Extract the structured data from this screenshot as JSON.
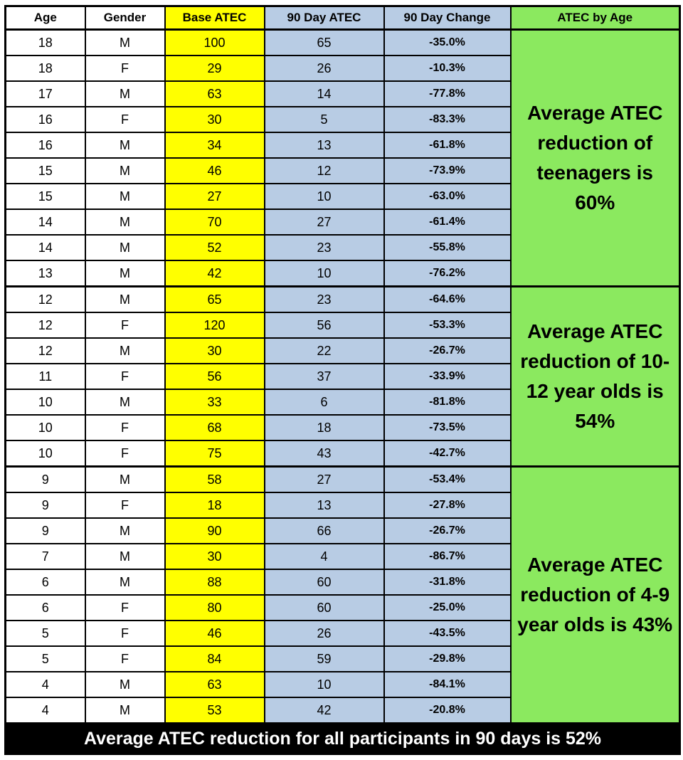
{
  "colors": {
    "base_atec_fill": "#FFFF00",
    "day90_fill": "#B8CCE4",
    "group_fill": "#8BE95F",
    "footer_bg": "#000000",
    "footer_text": "#FFFFFF",
    "border": "#000000"
  },
  "chart_data": {
    "type": "table",
    "columns": [
      "Age",
      "Gender",
      "Base ATEC",
      "90 Day ATEC",
      "90 Day Change",
      "ATEC by Age"
    ],
    "groups": [
      {
        "label": "teenagers",
        "summary": "Average ATEC reduction of teenagers is 60%",
        "avg_reduction_pct": 60,
        "rows": [
          {
            "age": 18,
            "gender": "M",
            "base_atec": 100,
            "day90_atec": 65,
            "change": "-35.0%"
          },
          {
            "age": 18,
            "gender": "F",
            "base_atec": 29,
            "day90_atec": 26,
            "change": "-10.3%"
          },
          {
            "age": 17,
            "gender": "M",
            "base_atec": 63,
            "day90_atec": 14,
            "change": "-77.8%"
          },
          {
            "age": 16,
            "gender": "F",
            "base_atec": 30,
            "day90_atec": 5,
            "change": "-83.3%"
          },
          {
            "age": 16,
            "gender": "M",
            "base_atec": 34,
            "day90_atec": 13,
            "change": "-61.8%"
          },
          {
            "age": 15,
            "gender": "M",
            "base_atec": 46,
            "day90_atec": 12,
            "change": "-73.9%"
          },
          {
            "age": 15,
            "gender": "M",
            "base_atec": 27,
            "day90_atec": 10,
            "change": "-63.0%"
          },
          {
            "age": 14,
            "gender": "M",
            "base_atec": 70,
            "day90_atec": 27,
            "change": "-61.4%"
          },
          {
            "age": 14,
            "gender": "M",
            "base_atec": 52,
            "day90_atec": 23,
            "change": "-55.8%"
          },
          {
            "age": 13,
            "gender": "M",
            "base_atec": 42,
            "day90_atec": 10,
            "change": "-76.2%"
          }
        ]
      },
      {
        "label": "10-12 year olds",
        "summary": "Average ATEC reduction of 10-12 year olds is 54%",
        "avg_reduction_pct": 54,
        "rows": [
          {
            "age": 12,
            "gender": "M",
            "base_atec": 65,
            "day90_atec": 23,
            "change": "-64.6%"
          },
          {
            "age": 12,
            "gender": "F",
            "base_atec": 120,
            "day90_atec": 56,
            "change": "-53.3%"
          },
          {
            "age": 12,
            "gender": "M",
            "base_atec": 30,
            "day90_atec": 22,
            "change": "-26.7%"
          },
          {
            "age": 11,
            "gender": "F",
            "base_atec": 56,
            "day90_atec": 37,
            "change": "-33.9%"
          },
          {
            "age": 10,
            "gender": "M",
            "base_atec": 33,
            "day90_atec": 6,
            "change": "-81.8%"
          },
          {
            "age": 10,
            "gender": "F",
            "base_atec": 68,
            "day90_atec": 18,
            "change": "-73.5%"
          },
          {
            "age": 10,
            "gender": "F",
            "base_atec": 75,
            "day90_atec": 43,
            "change": "-42.7%"
          }
        ]
      },
      {
        "label": "4-9 year olds",
        "summary": "Average ATEC reduction of 4-9 year olds is 43%",
        "avg_reduction_pct": 43,
        "rows": [
          {
            "age": 9,
            "gender": "M",
            "base_atec": 58,
            "day90_atec": 27,
            "change": "-53.4%"
          },
          {
            "age": 9,
            "gender": "F",
            "base_atec": 18,
            "day90_atec": 13,
            "change": "-27.8%"
          },
          {
            "age": 9,
            "gender": "M",
            "base_atec": 90,
            "day90_atec": 66,
            "change": "-26.7%"
          },
          {
            "age": 7,
            "gender": "M",
            "base_atec": 30,
            "day90_atec": 4,
            "change": "-86.7%"
          },
          {
            "age": 6,
            "gender": "M",
            "base_atec": 88,
            "day90_atec": 60,
            "change": "-31.8%"
          },
          {
            "age": 6,
            "gender": "F",
            "base_atec": 80,
            "day90_atec": 60,
            "change": "-25.0%"
          },
          {
            "age": 5,
            "gender": "F",
            "base_atec": 46,
            "day90_atec": 26,
            "change": "-43.5%"
          },
          {
            "age": 5,
            "gender": "F",
            "base_atec": 84,
            "day90_atec": 59,
            "change": "-29.8%"
          },
          {
            "age": 4,
            "gender": "M",
            "base_atec": 63,
            "day90_atec": 10,
            "change": "-84.1%"
          },
          {
            "age": 4,
            "gender": "M",
            "base_atec": 53,
            "day90_atec": 42,
            "change": "-20.8%"
          }
        ]
      }
    ],
    "footer": "Average ATEC reduction for all participants in 90 days is 52%",
    "overall_avg_reduction_pct": 52
  }
}
